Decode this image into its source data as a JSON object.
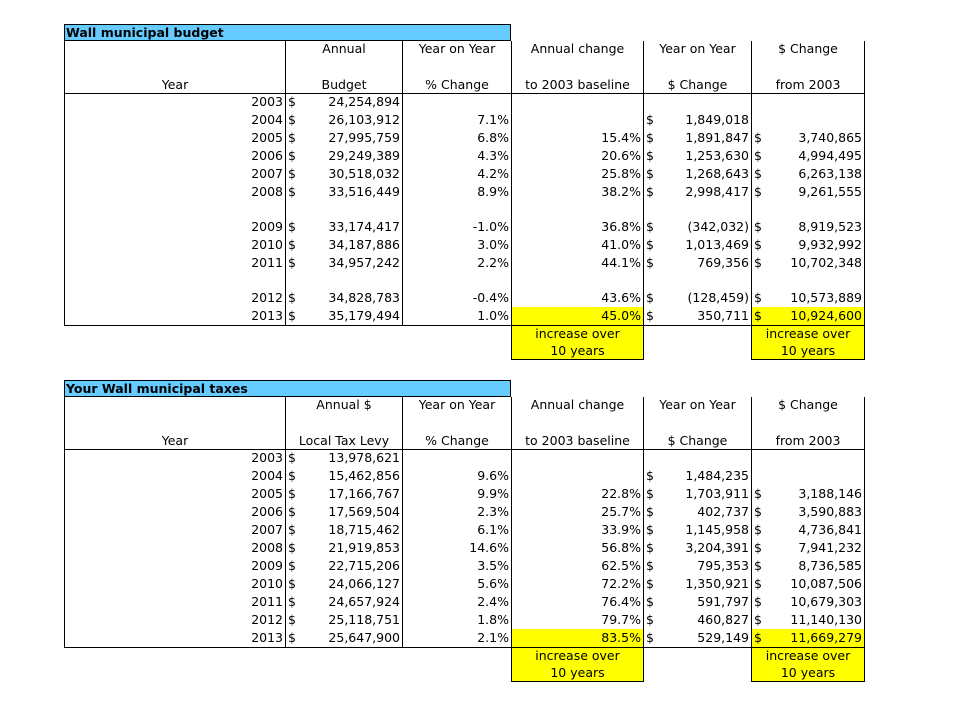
{
  "budget": {
    "title": "Wall municipal budget",
    "headers_row1": [
      "",
      "Annual",
      "Year on Year",
      "Annual change",
      "Year on Year",
      "$ Change"
    ],
    "headers_row2": [
      "Year",
      "Budget",
      "% Change",
      "to 2003 baseline",
      "$ Change",
      "from 2003"
    ],
    "rows": [
      {
        "year": "2003",
        "amount": "24,254,894",
        "pct": "",
        "base": "",
        "chg": "",
        "from": ""
      },
      {
        "year": "2004",
        "amount": "26,103,912",
        "pct": "7.1%",
        "base": "",
        "chg": "1,849,018",
        "from": ""
      },
      {
        "year": "2005",
        "amount": "27,995,759",
        "pct": "6.8%",
        "base": "15.4%",
        "chg": "1,891,847",
        "from": "3,740,865"
      },
      {
        "year": "2006",
        "amount": "29,249,389",
        "pct": "4.3%",
        "base": "20.6%",
        "chg": "1,253,630",
        "from": "4,994,495"
      },
      {
        "year": "2007",
        "amount": "30,518,032",
        "pct": "4.2%",
        "base": "25.8%",
        "chg": "1,268,643",
        "from": "6,263,138"
      },
      {
        "year": "2008",
        "amount": "33,516,449",
        "pct": "8.9%",
        "base": "38.2%",
        "chg": "2,998,417",
        "from": "9,261,555"
      },
      {
        "gap": true
      },
      {
        "year": "2009",
        "amount": "33,174,417",
        "pct": "-1.0%",
        "base": "36.8%",
        "chg": "(342,032)",
        "from": "8,919,523"
      },
      {
        "year": "2010",
        "amount": "34,187,886",
        "pct": "3.0%",
        "base": "41.0%",
        "chg": "1,013,469",
        "from": "9,932,992"
      },
      {
        "year": "2011",
        "amount": "34,957,242",
        "pct": "2.2%",
        "base": "44.1%",
        "chg": "769,356",
        "from": "10,702,348"
      },
      {
        "gap": true
      },
      {
        "year": "2012",
        "amount": "34,828,783",
        "pct": "-0.4%",
        "base": "43.6%",
        "chg": "(128,459)",
        "from": "10,573,889"
      },
      {
        "year": "2013",
        "amount": "35,179,494",
        "pct": "1.0%",
        "base": "45.0%",
        "chg": "350,711",
        "from": "10,924,600",
        "highlight": true
      }
    ],
    "note_line1": "increase over",
    "note_line2": "10 years"
  },
  "taxes": {
    "title": "Your Wall municipal taxes",
    "headers_row1": [
      "",
      "Annual $",
      "Year on Year",
      "Annual change",
      "Year on Year",
      "$ Change"
    ],
    "headers_row2": [
      "Year",
      "Local Tax Levy",
      "% Change",
      "to 2003 baseline",
      "$ Change",
      "from 2003"
    ],
    "rows": [
      {
        "year": "2003",
        "amount": "13,978,621",
        "pct": "",
        "base": "",
        "chg": "",
        "from": ""
      },
      {
        "year": "2004",
        "amount": "15,462,856",
        "pct": "9.6%",
        "base": "",
        "chg": "1,484,235",
        "from": ""
      },
      {
        "year": "2005",
        "amount": "17,166,767",
        "pct": "9.9%",
        "base": "22.8%",
        "chg": "1,703,911",
        "from": "3,188,146"
      },
      {
        "year": "2006",
        "amount": "17,569,504",
        "pct": "2.3%",
        "base": "25.7%",
        "chg": "402,737",
        "from": "3,590,883"
      },
      {
        "year": "2007",
        "amount": "18,715,462",
        "pct": "6.1%",
        "base": "33.9%",
        "chg": "1,145,958",
        "from": "4,736,841"
      },
      {
        "year": "2008",
        "amount": "21,919,853",
        "pct": "14.6%",
        "base": "56.8%",
        "chg": "3,204,391",
        "from": "7,941,232"
      },
      {
        "year": "2009",
        "amount": "22,715,206",
        "pct": "3.5%",
        "base": "62.5%",
        "chg": "795,353",
        "from": "8,736,585"
      },
      {
        "year": "2010",
        "amount": "24,066,127",
        "pct": "5.6%",
        "base": "72.2%",
        "chg": "1,350,921",
        "from": "10,087,506"
      },
      {
        "year": "2011",
        "amount": "24,657,924",
        "pct": "2.4%",
        "base": "76.4%",
        "chg": "591,797",
        "from": "10,679,303"
      },
      {
        "year": "2012",
        "amount": "25,118,751",
        "pct": "1.8%",
        "base": "79.7%",
        "chg": "460,827",
        "from": "11,140,130"
      },
      {
        "year": "2013",
        "amount": "25,647,900",
        "pct": "2.1%",
        "base": "83.5%",
        "chg": "529,149",
        "from": "11,669,279",
        "highlight": true
      }
    ],
    "note_line1": "increase over",
    "note_line2": "10 years"
  },
  "currency_symbol": "$",
  "colors": {
    "title_bar": "#66ccff",
    "highlight": "#ffff00"
  }
}
